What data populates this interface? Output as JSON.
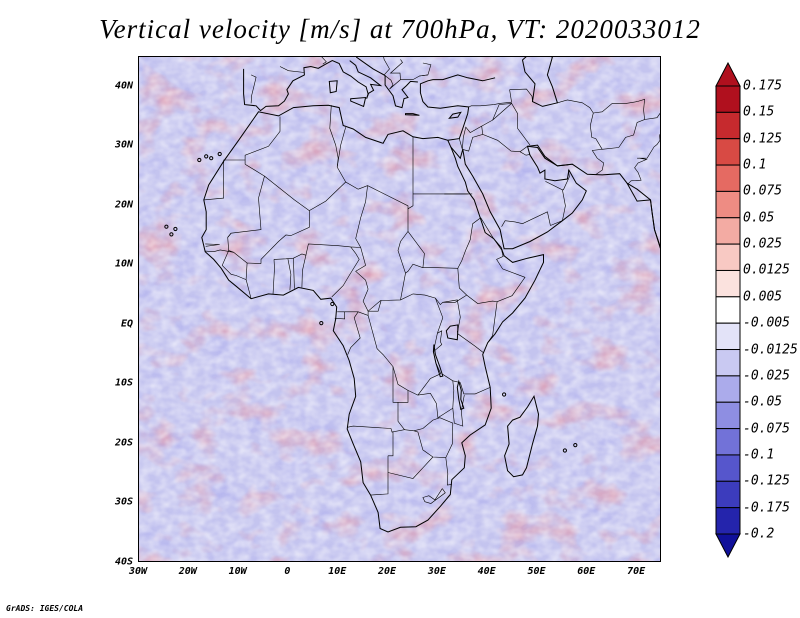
{
  "title": "Vertical velocity [m/s] at 700hPa, VT: 2020033012",
  "credit": "GrADS: IGES/COLA",
  "map": {
    "lat_range": [
      -40,
      45
    ],
    "lon_range": [
      -30,
      75
    ],
    "lat_ticks": [
      {
        "value": 40,
        "label": "40N"
      },
      {
        "value": 30,
        "label": "30N"
      },
      {
        "value": 20,
        "label": "20N"
      },
      {
        "value": 10,
        "label": "10N"
      },
      {
        "value": 0,
        "label": "EQ"
      },
      {
        "value": -10,
        "label": "10S"
      },
      {
        "value": -20,
        "label": "20S"
      },
      {
        "value": -30,
        "label": "30S"
      },
      {
        "value": -40,
        "label": "40S"
      }
    ],
    "lon_ticks": [
      {
        "value": -30,
        "label": "30W"
      },
      {
        "value": -20,
        "label": "20W"
      },
      {
        "value": -10,
        "label": "10W"
      },
      {
        "value": 0,
        "label": "0"
      },
      {
        "value": 10,
        "label": "10E"
      },
      {
        "value": 20,
        "label": "20E"
      },
      {
        "value": 30,
        "label": "30E"
      },
      {
        "value": 40,
        "label": "40E"
      },
      {
        "value": 50,
        "label": "50E"
      },
      {
        "value": 60,
        "label": "60E"
      },
      {
        "value": 70,
        "label": "70E"
      }
    ]
  },
  "colorbar": {
    "levels": [
      "0.175",
      "0.15",
      "0.125",
      "0.1",
      "0.075",
      "0.05",
      "0.025",
      "0.0125",
      "0.005",
      "-0.005",
      "-0.0125",
      "-0.025",
      "-0.05",
      "-0.075",
      "-0.1",
      "-0.125",
      "-0.175",
      "-0.2"
    ],
    "colors": [
      "#b0101e",
      "#c62a2e",
      "#d84a44",
      "#e56a62",
      "#ee8c83",
      "#f3aba3",
      "#f8c9c3",
      "#fbe2de",
      "#ffffff",
      "#e3e3f8",
      "#c9c9f2",
      "#ababeb",
      "#8e8ee2",
      "#7272d8",
      "#5656cc",
      "#3c3cbd",
      "#2424ac",
      "#10109a"
    ]
  }
}
